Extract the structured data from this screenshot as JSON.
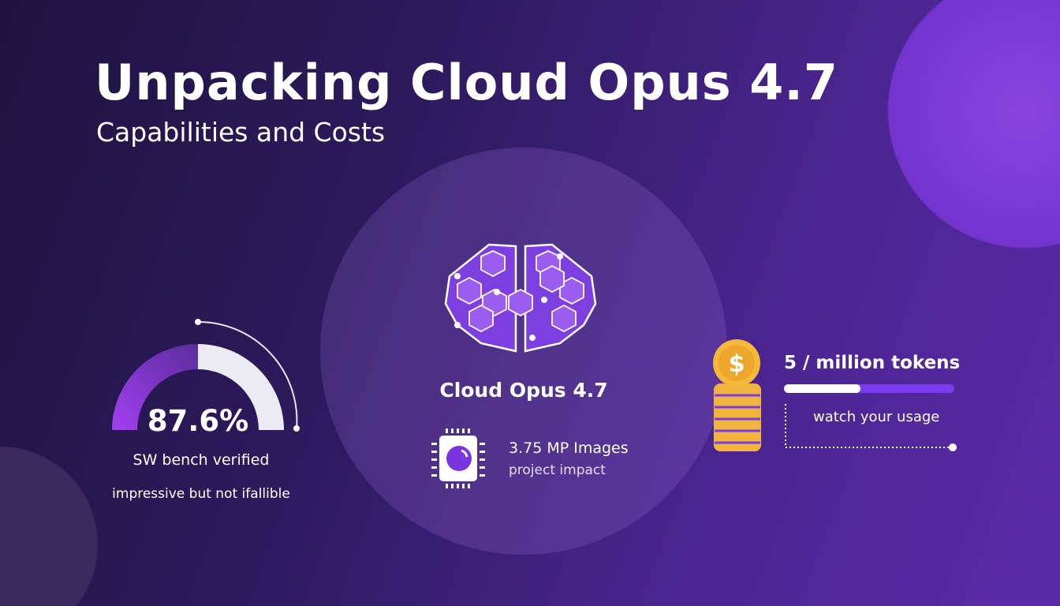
{
  "header": {
    "title": "Unpacking Cloud Opus 4.7",
    "subtitle": "Capabilities and Costs"
  },
  "benchmark": {
    "value": "87.6%",
    "label": "SW bench verified",
    "note": "impressive but not ifallible"
  },
  "center": {
    "model_name": "Cloud Opus 4.7",
    "image_stat": "3.75 MP Images",
    "image_note": "project impact"
  },
  "cost": {
    "price": "5 / million tokens",
    "progress_percent": 45,
    "note": "watch your usage"
  },
  "colors": {
    "accent": "#7c3aed",
    "coin": "#f5b83a",
    "background": "#2c1a5c"
  },
  "icons": [
    "brain-icon",
    "chip-icon",
    "coin-stack-icon",
    "dollar-icon"
  ]
}
